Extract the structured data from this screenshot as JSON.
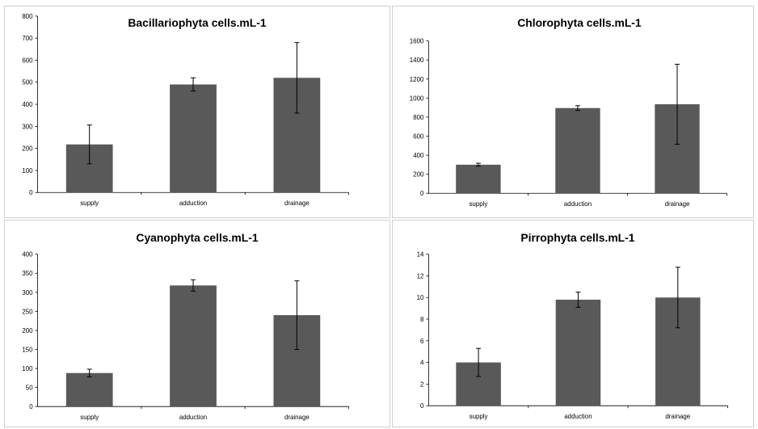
{
  "chart_data": [
    {
      "type": "bar",
      "title": "Bacillariophyta cells.mL-1",
      "categories": [
        "supply",
        "adduction",
        "drainage"
      ],
      "values": [
        218,
        490,
        520
      ],
      "errors": [
        88,
        30,
        160
      ],
      "ylim": [
        0,
        800
      ],
      "yticks": [
        0,
        100,
        200,
        300,
        400,
        500,
        600,
        700,
        800
      ],
      "ytick_labels": [
        "0",
        "100",
        "200",
        "300",
        "400",
        "500",
        "600",
        "700",
        "800"
      ],
      "bar_color": "#595959",
      "grid": false,
      "legend": "none"
    },
    {
      "type": "bar",
      "title": "Chlorophyta cells.mL-1",
      "categories": [
        "supply",
        "adduction",
        "drainage"
      ],
      "values": [
        300,
        895,
        935
      ],
      "errors": [
        15,
        25,
        420
      ],
      "ylim": [
        0,
        1600
      ],
      "yticks": [
        0,
        200,
        400,
        600,
        800,
        1000,
        1200,
        1400,
        1600
      ],
      "ytick_labels": [
        "0",
        "200",
        "400",
        "600",
        "800",
        "1000",
        "1200",
        "1400",
        "1600"
      ],
      "bar_color": "#595959",
      "grid": false,
      "legend": "none"
    },
    {
      "type": "bar",
      "title": "Cyanophyta cells.mL-1",
      "categories": [
        "supply",
        "adduction",
        "drainage"
      ],
      "values": [
        88,
        318,
        240
      ],
      "errors": [
        10,
        15,
        90
      ],
      "ylim": [
        0,
        400
      ],
      "yticks": [
        0,
        50,
        100,
        150,
        200,
        250,
        300,
        350,
        400
      ],
      "ytick_labels": [
        "0",
        "50",
        "100",
        "150",
        "200",
        "250",
        "300",
        "350",
        "400"
      ],
      "bar_color": "#595959",
      "grid": false,
      "legend": "none"
    },
    {
      "type": "bar",
      "title": "Pirrophyta cells.mL-1",
      "categories": [
        "supply",
        "adduction",
        "drainage"
      ],
      "values": [
        4.0,
        9.8,
        10.0
      ],
      "errors": [
        1.3,
        0.7,
        2.8
      ],
      "ylim": [
        0,
        14
      ],
      "yticks": [
        0,
        2,
        4,
        6,
        8,
        10,
        12,
        14
      ],
      "ytick_labels": [
        "0",
        "2",
        "4",
        "6",
        "8",
        "10",
        "12",
        "14"
      ],
      "bar_color": "#595959",
      "grid": false,
      "legend": "none"
    }
  ]
}
